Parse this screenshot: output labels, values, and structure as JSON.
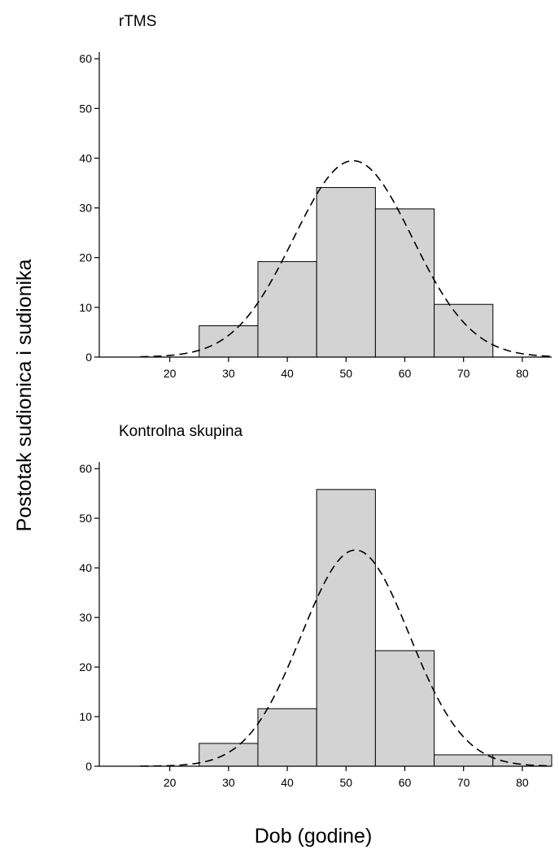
{
  "chart_data": [
    {
      "type": "bar",
      "title": "rTMS",
      "bin_edges": [
        25,
        35,
        45,
        55,
        65,
        75
      ],
      "values": [
        6.3,
        19.2,
        34.1,
        29.8,
        10.6
      ],
      "normal_curve": {
        "mean": 51.2,
        "sd": 10.1,
        "peak": 39.5
      },
      "x_ticks": [
        20,
        30,
        40,
        50,
        60,
        70,
        80
      ],
      "y_ticks": [
        0,
        10,
        20,
        30,
        40,
        50,
        60
      ],
      "xlim": [
        8,
        85
      ],
      "ylim": [
        0,
        62
      ]
    },
    {
      "type": "bar",
      "title": "Kontrolna skupina",
      "bin_edges": [
        25,
        35,
        45,
        55,
        65,
        75,
        85
      ],
      "values": [
        4.6,
        11.6,
        55.8,
        23.3,
        2.3,
        2.3
      ],
      "normal_curve": {
        "mean": 51.6,
        "sd": 9.2,
        "peak": 43.6
      },
      "x_ticks": [
        20,
        30,
        40,
        50,
        60,
        70,
        80
      ],
      "y_ticks": [
        0,
        10,
        20,
        30,
        40,
        50,
        60
      ],
      "xlim": [
        8,
        85
      ],
      "ylim": [
        0,
        62
      ]
    }
  ],
  "xlabel": "Dob (godine)",
  "ylabel": "Postotak sudionica i sudionika",
  "colors": {
    "bar_fill": "#d3d3d3",
    "bar_stroke": "#000000",
    "curve": "#000000"
  }
}
